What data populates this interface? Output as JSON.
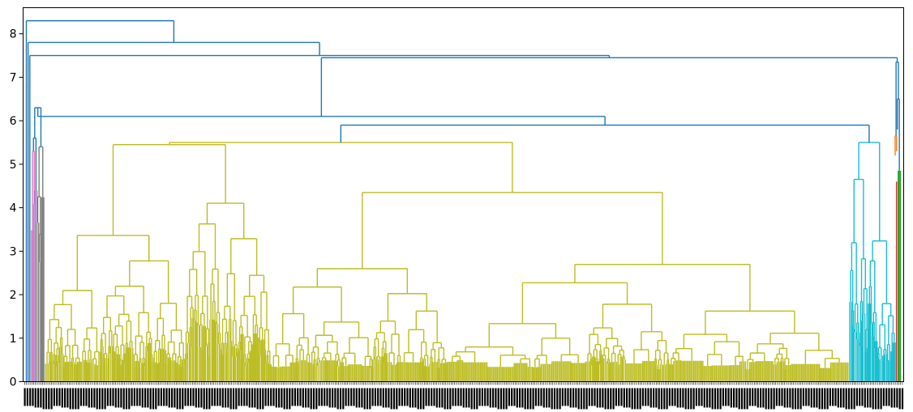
{
  "chart_data": {
    "type": "dendrogram",
    "title": "",
    "xlabel": "",
    "ylabel": "",
    "ylim": [
      0,
      8.6
    ],
    "y_ticks": [
      "0",
      "1",
      "2",
      "3",
      "4",
      "5",
      "6",
      "7",
      "8"
    ],
    "x_tick_labels_note": "dense overlapping leaf index labels",
    "grid": false,
    "legend": "none",
    "cluster_colors": {
      "above_threshold": "#1f77b4",
      "orange": "#ff7f0e",
      "green": "#2ca02c",
      "red": "#d62728",
      "purple": "#9467bd",
      "brown": "#8c564b",
      "pink": "#e377c2",
      "gray": "#7f7f7f",
      "olive": "#bcbd22",
      "cyan": "#17becf"
    },
    "leaf_clusters": [
      {
        "color": "blue",
        "from": 0.0,
        "to": 0.006
      },
      {
        "color": "pink",
        "from": 0.006,
        "to": 0.01
      },
      {
        "color": "purple",
        "from": 0.01,
        "to": 0.012
      },
      {
        "color": "gray",
        "from": 0.012,
        "to": 0.02
      },
      {
        "color": "olive",
        "from": 0.02,
        "to": 0.942
      },
      {
        "color": "cyan",
        "from": 0.942,
        "to": 0.995
      },
      {
        "color": "red",
        "from": 0.995,
        "to": 0.997
      },
      {
        "color": "green",
        "from": 0.997,
        "to": 1.0
      }
    ],
    "merges_above_threshold": [
      {
        "height": 8.3,
        "color": "blue"
      },
      {
        "height": 7.8,
        "color": "blue"
      },
      {
        "height": 7.5,
        "color": "blue"
      },
      {
        "height": 7.45,
        "color": "blue"
      },
      {
        "height": 7.35,
        "color": "blue"
      },
      {
        "height": 6.5,
        "color": "blue"
      },
      {
        "height": 6.3,
        "color": "blue"
      },
      {
        "height": 6.1,
        "color": "blue"
      },
      {
        "height": 5.9,
        "color": "blue"
      }
    ],
    "cluster_top_heights": {
      "olive": 5.5,
      "cyan": 5.5,
      "orange": 5.65,
      "green": 4.85,
      "red": 6.1,
      "gray": 5.4,
      "pink": 5.3
    }
  }
}
